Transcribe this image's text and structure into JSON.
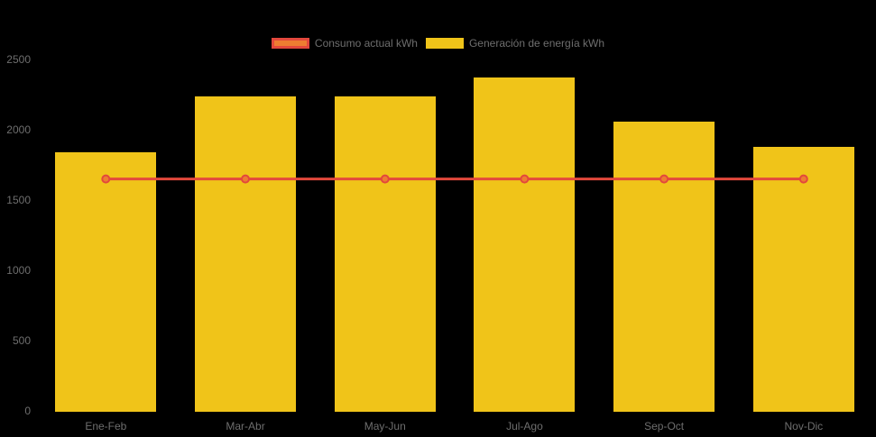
{
  "chart_data": {
    "type": "bar",
    "categories": [
      "Ene-Feb",
      "Mar-Abr",
      "May-Jun",
      "Jul-Ago",
      "Sep-Oct",
      "Nov-Dic"
    ],
    "series": [
      {
        "name": "Consumo actual kWh",
        "type": "line",
        "values": [
          1650,
          1650,
          1650,
          1650,
          1650,
          1650
        ]
      },
      {
        "name": "Generación de energía kWh",
        "type": "bar",
        "values": [
          1840,
          2240,
          2240,
          2370,
          2060,
          1880
        ]
      }
    ],
    "ylim": [
      0,
      2500
    ],
    "yticks": [
      0,
      500,
      1000,
      1500,
      2000,
      2500
    ],
    "grid": false,
    "legend_position": "top",
    "colors": {
      "bar_fill": "#F0C419",
      "line_stroke": "#E3483C",
      "point_fill": "#ED7D31",
      "axis_label": "#6E6E6E",
      "background": "#000000"
    }
  }
}
